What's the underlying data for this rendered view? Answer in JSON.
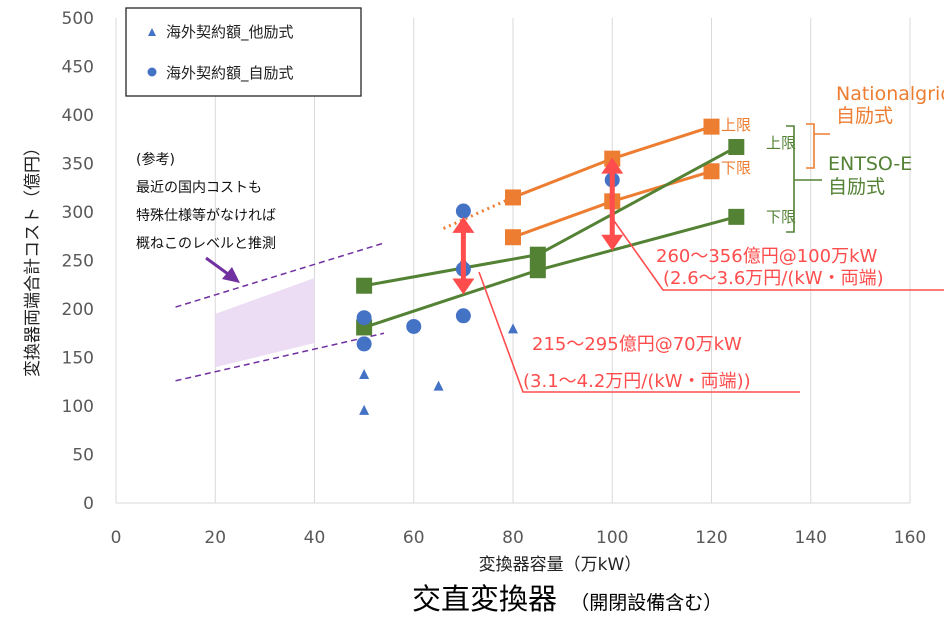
{
  "chart_data": {
    "type": "scatter",
    "title": "交直変換器",
    "subtitle": "（開閉設備含む）",
    "xlabel": "変換器容量（万kW）",
    "ylabel": "変換器両端合計コスト（億円）",
    "xlim": [
      0,
      160
    ],
    "ylim": [
      0,
      500
    ],
    "x_ticks": [
      "0",
      "20",
      "40",
      "60",
      "80",
      "100",
      "120",
      "140",
      "160"
    ],
    "y_ticks": [
      "0",
      "50",
      "100",
      "150",
      "200",
      "250",
      "300",
      "350",
      "400",
      "450",
      "500"
    ],
    "grid": "vertical gridlines",
    "legend_position": "top-left",
    "series": [
      {
        "name": "海外契約額_他励式",
        "marker": "triangle",
        "color": "#4472C4",
        "points": [
          [
            50,
            96
          ],
          [
            50,
            133
          ],
          [
            65,
            121
          ],
          [
            70,
            250
          ],
          [
            80,
            180
          ]
        ]
      },
      {
        "name": "海外契約額_自励式",
        "marker": "circle",
        "color": "#4472C4",
        "points": [
          [
            50,
            191
          ],
          [
            50,
            164
          ],
          [
            60,
            182
          ],
          [
            70,
            301
          ],
          [
            70,
            241
          ],
          [
            70,
            193
          ],
          [
            100,
            333
          ]
        ]
      }
    ],
    "lines": [
      {
        "group": "Nationalgrid",
        "bound": "上限",
        "color": "#ED7D31",
        "marker": "square",
        "points": [
          [
            80,
            315
          ],
          [
            100,
            355
          ],
          [
            120,
            388
          ]
        ]
      },
      {
        "group": "Nationalgrid",
        "bound": "下限",
        "color": "#ED7D31",
        "marker": "square",
        "points": [
          [
            80,
            274
          ],
          [
            100,
            311
          ],
          [
            120,
            342
          ]
        ]
      },
      {
        "group": "ENTSO-E",
        "bound": "上限",
        "color": "#548235",
        "marker": "square",
        "points": [
          [
            50,
            224
          ],
          [
            85,
            256
          ],
          [
            125,
            367
          ]
        ]
      },
      {
        "group": "ENTSO-E",
        "bound": "下限",
        "color": "#548235",
        "marker": "square",
        "points": [
          [
            50,
            181
          ],
          [
            85,
            240
          ],
          [
            125,
            295
          ]
        ]
      }
    ],
    "orange_dotted_extension": [
      [
        66,
        283
      ],
      [
        80,
        315
      ]
    ],
    "range_arrows": [
      {
        "x": 70,
        "from": 295,
        "to": 215,
        "color": "#FF4D4D"
      },
      {
        "x": 100,
        "from": 356,
        "to": 260,
        "color": "#FF4D4D"
      }
    ],
    "reference_region": {
      "x": [
        20,
        40
      ],
      "y_bottom": [
        140,
        165
      ],
      "y_top": [
        195,
        232
      ]
    },
    "reference_lines": [
      {
        "points": [
          [
            12,
            202
          ],
          [
            54,
            268
          ]
        ]
      },
      {
        "points": [
          [
            12,
            126
          ],
          [
            54,
            175
          ]
        ]
      }
    ]
  },
  "legend": {
    "item1": "海外契約額_他励式",
    "item2": "海外契約額_自励式"
  },
  "annotations": {
    "reference_note": [
      "(参考)",
      "最近の国内コストも",
      "特殊仕様等がなければ",
      "概ねこのレベルと推測"
    ],
    "ng_label": [
      "Nationalgrid",
      "自励式"
    ],
    "entso_label": [
      "ENTSO-E",
      "自励式"
    ],
    "ng_upper": "上限",
    "ng_lower": "下限",
    "entso_upper": "上限",
    "entso_lower": "下限",
    "cost_100": [
      "260～356億円@100万kW",
      "(2.6～3.6万円/(kW・両端)"
    ],
    "cost_70": [
      "215～295億円@70万kW",
      "(3.1～4.2万円/(kW・両端))"
    ]
  },
  "colors": {
    "orange": "#ED7D31",
    "green": "#548235",
    "blue": "#4472C4",
    "red": "#FF4D4D",
    "purple": "#7030A0",
    "shade": "#EBD9F3"
  }
}
